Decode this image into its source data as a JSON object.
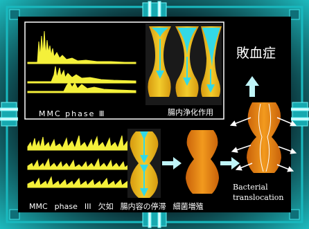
{
  "labels": {
    "mmc_phase3": "MMC phase Ⅲ",
    "intestinal_cleaning": "腸内浄化作用",
    "sepsis": "敗血症",
    "bacterial_translocation": "Bacterial translocation",
    "mmc_word": "MMC",
    "phase_word": "phase",
    "roman_three": "III",
    "absent": "欠如",
    "content_stasis": "腸内容の停滞",
    "bacterial_overgrowth": "細菌増殖"
  },
  "colors": {
    "background": "#000000",
    "frame_teal": "#19c6c6",
    "trace_yellow": "#f4f03a",
    "gut_gold": "#e8b81a",
    "lumen_cyan": "#33d9e6",
    "gut_orange": "#e8820c",
    "arrow_cyan": "#7fe8f0"
  }
}
